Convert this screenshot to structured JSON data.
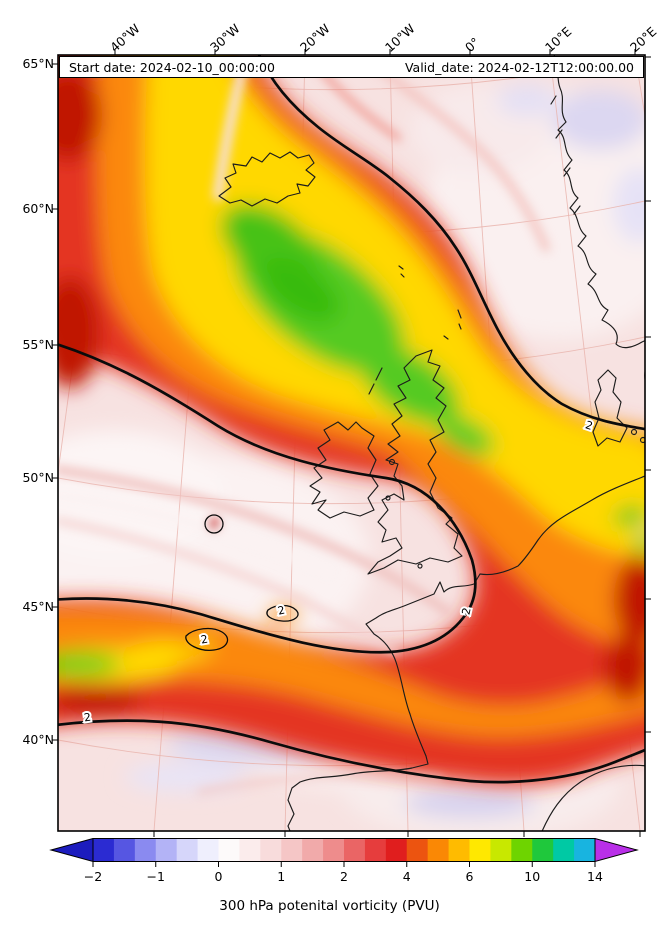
{
  "header": {
    "start_date_label": "Start date: 2024-02-10_00:00:00",
    "valid_date_label": "Valid_date: 2024-02-12T12:00:00.00"
  },
  "caption": "300 hPa potenital vorticity (PVU)",
  "axes": {
    "lat_ticks": [
      "65°N",
      "60°N",
      "55°N",
      "50°N",
      "45°N",
      "40°N"
    ],
    "lon_ticks": [
      "40°W",
      "30°W",
      "20°W",
      "10°W",
      "0°",
      "10°E",
      "20°E"
    ]
  },
  "chart_data": {
    "type": "heatmap",
    "subtype": "filled-contour-weather-map",
    "title": "300 hPa potenital vorticity (PVU)",
    "variable": "300 hPa potential vorticity",
    "units": "PVU",
    "start_date": "2024-02-10_00:00:00",
    "valid_date": "2024-02-12T12:00:00.00",
    "lon_tick_values_deg": [
      -40,
      -30,
      -20,
      -10,
      0,
      10,
      20
    ],
    "lat_tick_values_deg": [
      65,
      60,
      55,
      50,
      45,
      40
    ],
    "contour_label_value": 2,
    "colorbar": {
      "orientation": "horizontal",
      "tick_values": [
        -2,
        -1,
        0,
        1,
        2,
        4,
        6,
        10,
        14
      ],
      "tick_labels": [
        "−2",
        "−1",
        "0",
        "1",
        "2",
        "4",
        "6",
        "10",
        "14"
      ],
      "under_color": "#1c1cbe",
      "over_color": "#b92fe8",
      "segment_colors": [
        "#2b2bd2",
        "#5656e2",
        "#8a8af0",
        "#b3b3f6",
        "#d6d6fa",
        "#efeffd",
        "#fdfafa",
        "#fbecec",
        "#f8dcdc",
        "#f5c6c6",
        "#f1aaaa",
        "#ee8c8c",
        "#ea6565",
        "#e63d3d",
        "#e01e1e",
        "#ec5410",
        "#fa8805",
        "#ffbb00",
        "#ffe800",
        "#c8e800",
        "#6ed400",
        "#1fc83c",
        "#00c9a4",
        "#18b4e0"
      ]
    },
    "notable_features": [
      "High-PV streamer (red/orange/yellow with green core above 6 PVU) stretching from west of Iceland southeastward across the British Isles toward the continent",
      "Thick black 2-PVU contours outlining the streamer and a secondary band",
      "Secondary high-PV band near 43-46N across the Bay of Biscay into France",
      "Low-PV pale/lavender air (below 1 PVU) over Scandinavia, the Baltic and the subtropical Atlantic"
    ]
  }
}
